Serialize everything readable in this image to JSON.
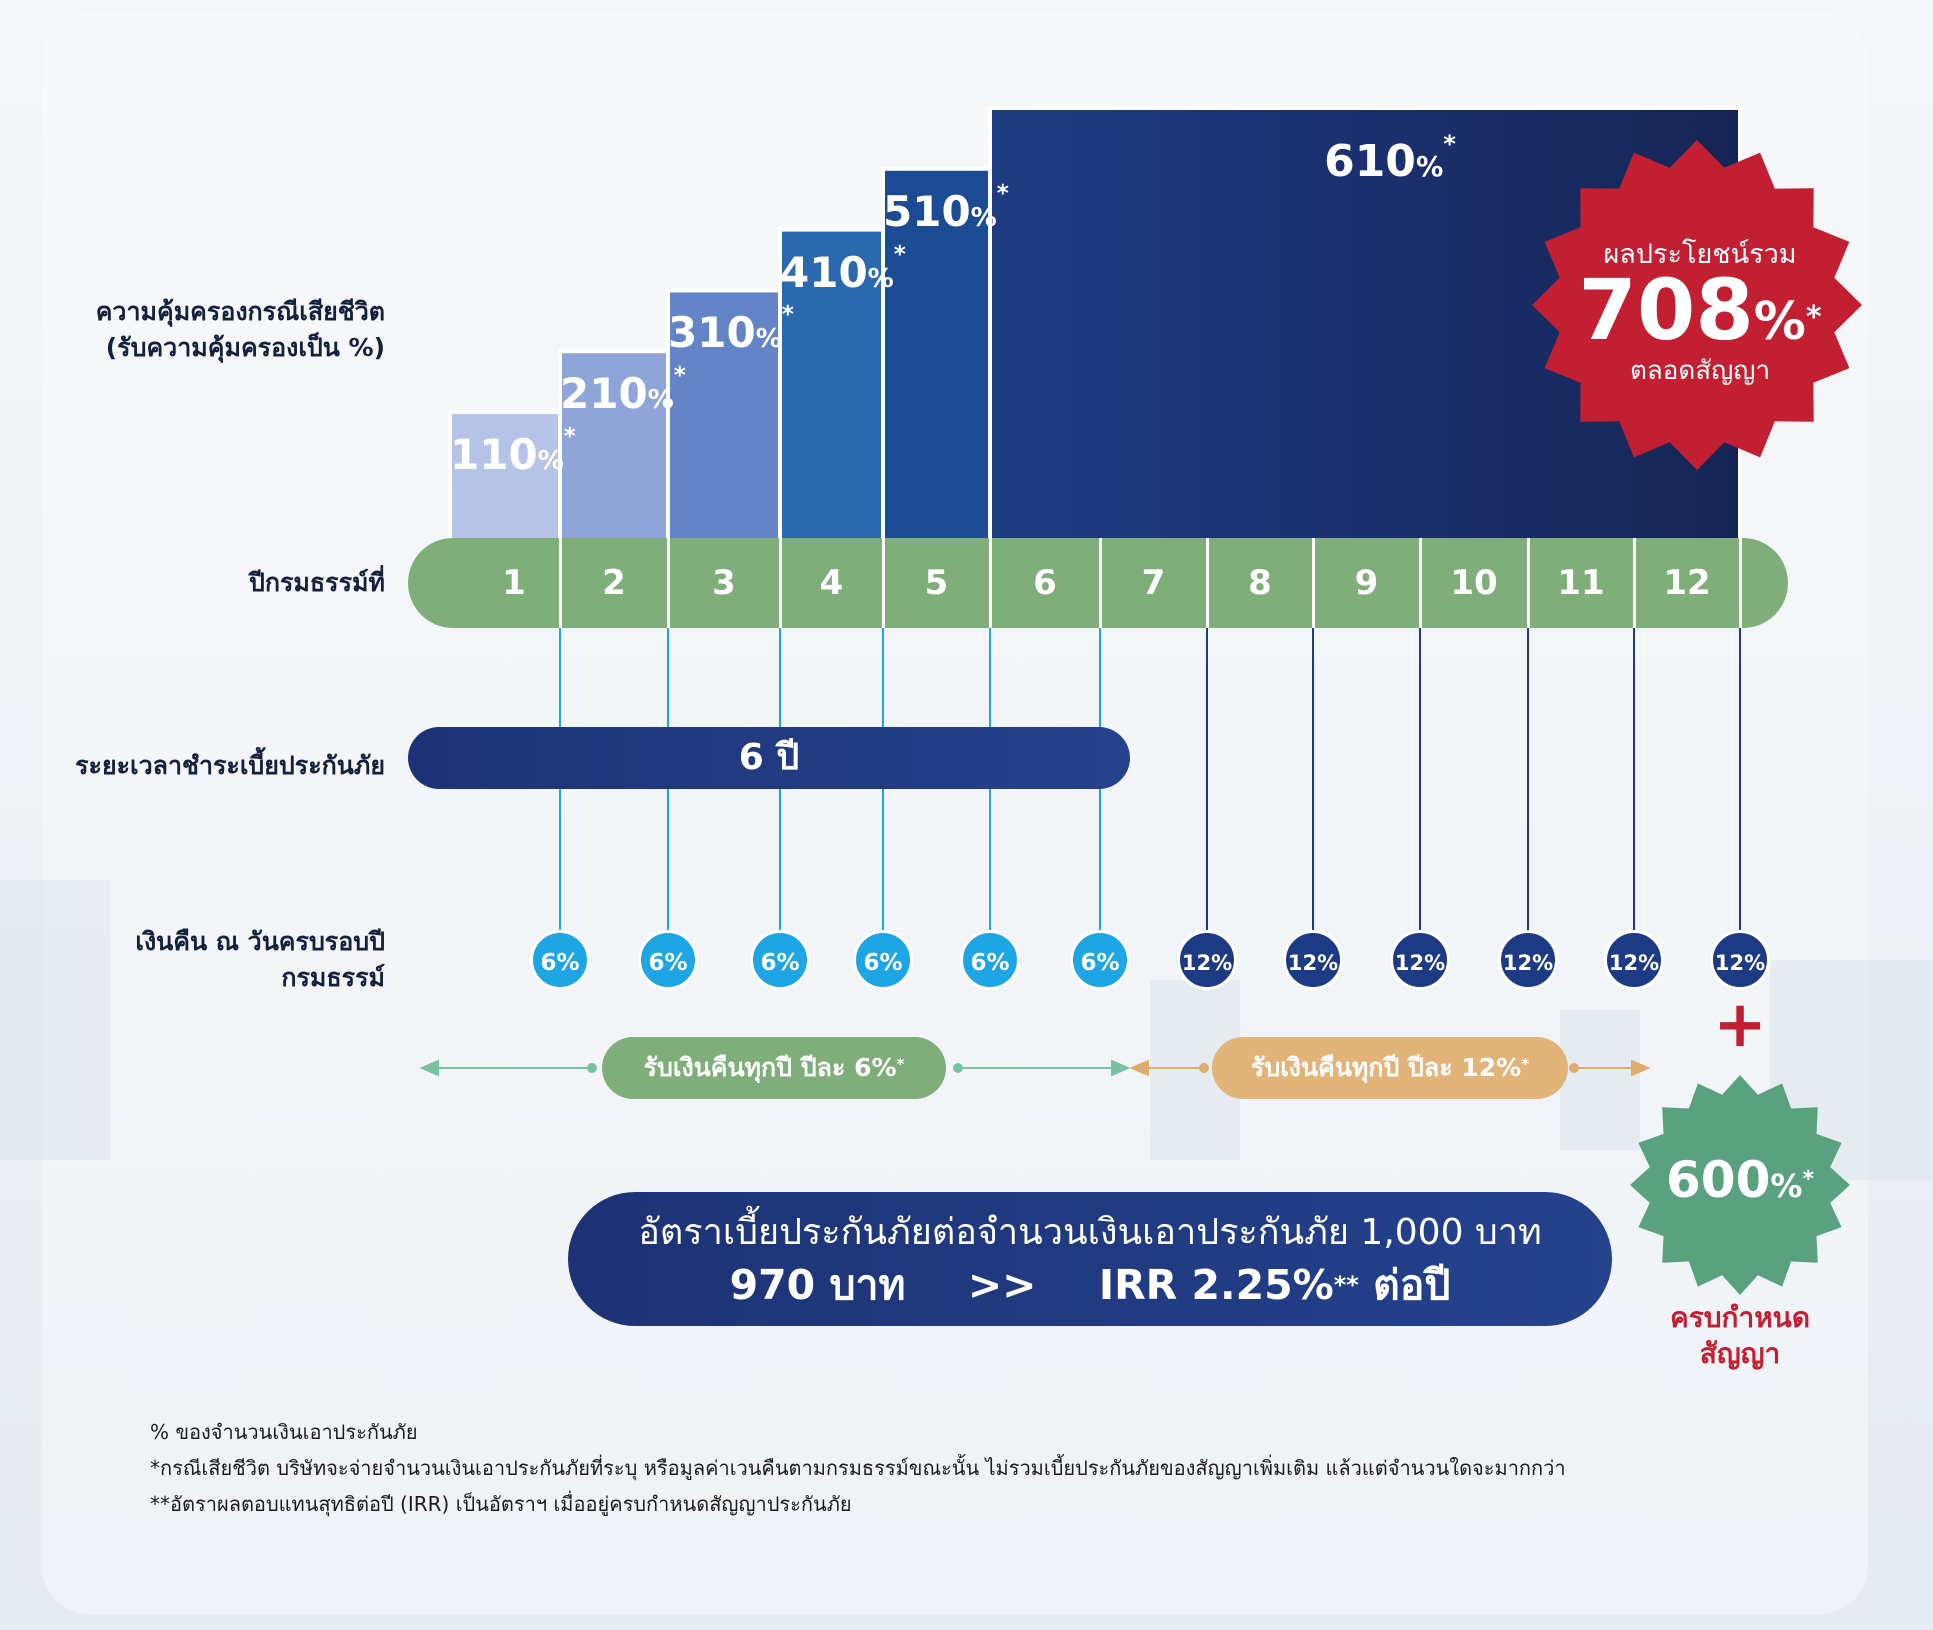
{
  "colors": {
    "year_bar": "#7fae7a",
    "payment_bar": "#1d3276",
    "refund_6": "#1ea6e4",
    "refund_12": "#1d3a84",
    "badge_total": "#c21f32",
    "badge_maturity": "#5aa27f",
    "pill_6": "#7fae7a",
    "pill_12": "#e3b47a",
    "maturity_text": "#c21f32"
  },
  "row_labels": {
    "coverage_line1": "ความคุ้มครองกรณีเสียชีวิต",
    "coverage_line2": "(รับความคุ้มครองเป็น %)",
    "policy_year": "ปีกรมธรรม์ที่",
    "payment_period": "ระยะเวลาชำระเบี้ยประกันภัย",
    "refund_line1": "เงินคืน ณ วันครบรอบปี",
    "refund_line2": "กรมธรรม์"
  },
  "chart_data": {
    "type": "bar",
    "categories": [
      "1",
      "2",
      "3",
      "4",
      "5",
      "6-12"
    ],
    "values": [
      110,
      210,
      310,
      410,
      510,
      610
    ],
    "ylabel": "ความคุ้มครองกรณีเสียชีวิต (รับความคุ้มครองเป็น %)",
    "unit": "%",
    "bar_colors": [
      "#b5c3e6",
      "#8fa4d8",
      "#6385c7",
      "#2a69ad",
      "#1b4b93",
      "#1d2f6e"
    ]
  },
  "coverage_labels": [
    {
      "value": "110",
      "pct": "%",
      "asterisk": "*"
    },
    {
      "value": "210",
      "pct": "%",
      "asterisk": "*"
    },
    {
      "value": "310",
      "pct": "%",
      "asterisk": "*"
    },
    {
      "value": "410",
      "pct": "%",
      "asterisk": "*"
    },
    {
      "value": "510",
      "pct": "%",
      "asterisk": "*"
    },
    {
      "value": "610",
      "pct": "%",
      "asterisk": "*"
    }
  ],
  "years": [
    "1",
    "2",
    "3",
    "4",
    "5",
    "6",
    "7",
    "8",
    "9",
    "10",
    "11",
    "12"
  ],
  "payment_period_value": "6 ปี",
  "refunds": [
    "6%",
    "6%",
    "6%",
    "6%",
    "6%",
    "6%",
    "12%",
    "12%",
    "12%",
    "12%",
    "12%",
    "12%"
  ],
  "refund_ranges": [
    {
      "label": "รับเงินคืนทุกปี ปีละ 6%",
      "asterisk": "*"
    },
    {
      "label": "รับเงินคืนทุกปี ปีละ 12%",
      "asterisk": "*"
    }
  ],
  "total_benefit": {
    "top": "ผลประโยชน์รวม",
    "value": "708",
    "pct": "%",
    "asterisk": "*",
    "bottom": "ตลอดสัญญา"
  },
  "maturity": {
    "plus": "+",
    "value": "600",
    "pct": "%",
    "asterisk": "*",
    "label_line1": "ครบกำหนด",
    "label_line2": "สัญญา"
  },
  "premium": {
    "line1": "อัตราเบี้ยประกันภัยต่อจำนวนเงินเอาประกันภัย 1,000 บาท",
    "amount": "970 บาท",
    "arrow": ">>",
    "irr": "IRR 2.25%",
    "irr_mark": "**",
    "per_year": "ต่อปี"
  },
  "footnotes": [
    "% ของจำนวนเงินเอาประกันภัย",
    "*กรณีเสียชีวิต บริษัทจะจ่ายจำนวนเงินเอาประกันภัยที่ระบุ หรือมูลค่าเวนคืนตามกรมธรรม์ขณะนั้น ไม่รวมเบี้ยประกันภัยของสัญญาเพิ่มเติม แล้วแต่จำนวนใดจะมากกว่า",
    "**อัตราผลตอบแทนสุทธิต่อปี (IRR) เป็นอัตราฯ เมื่ออยู่ครบกำหนดสัญญาประกันภัย"
  ]
}
